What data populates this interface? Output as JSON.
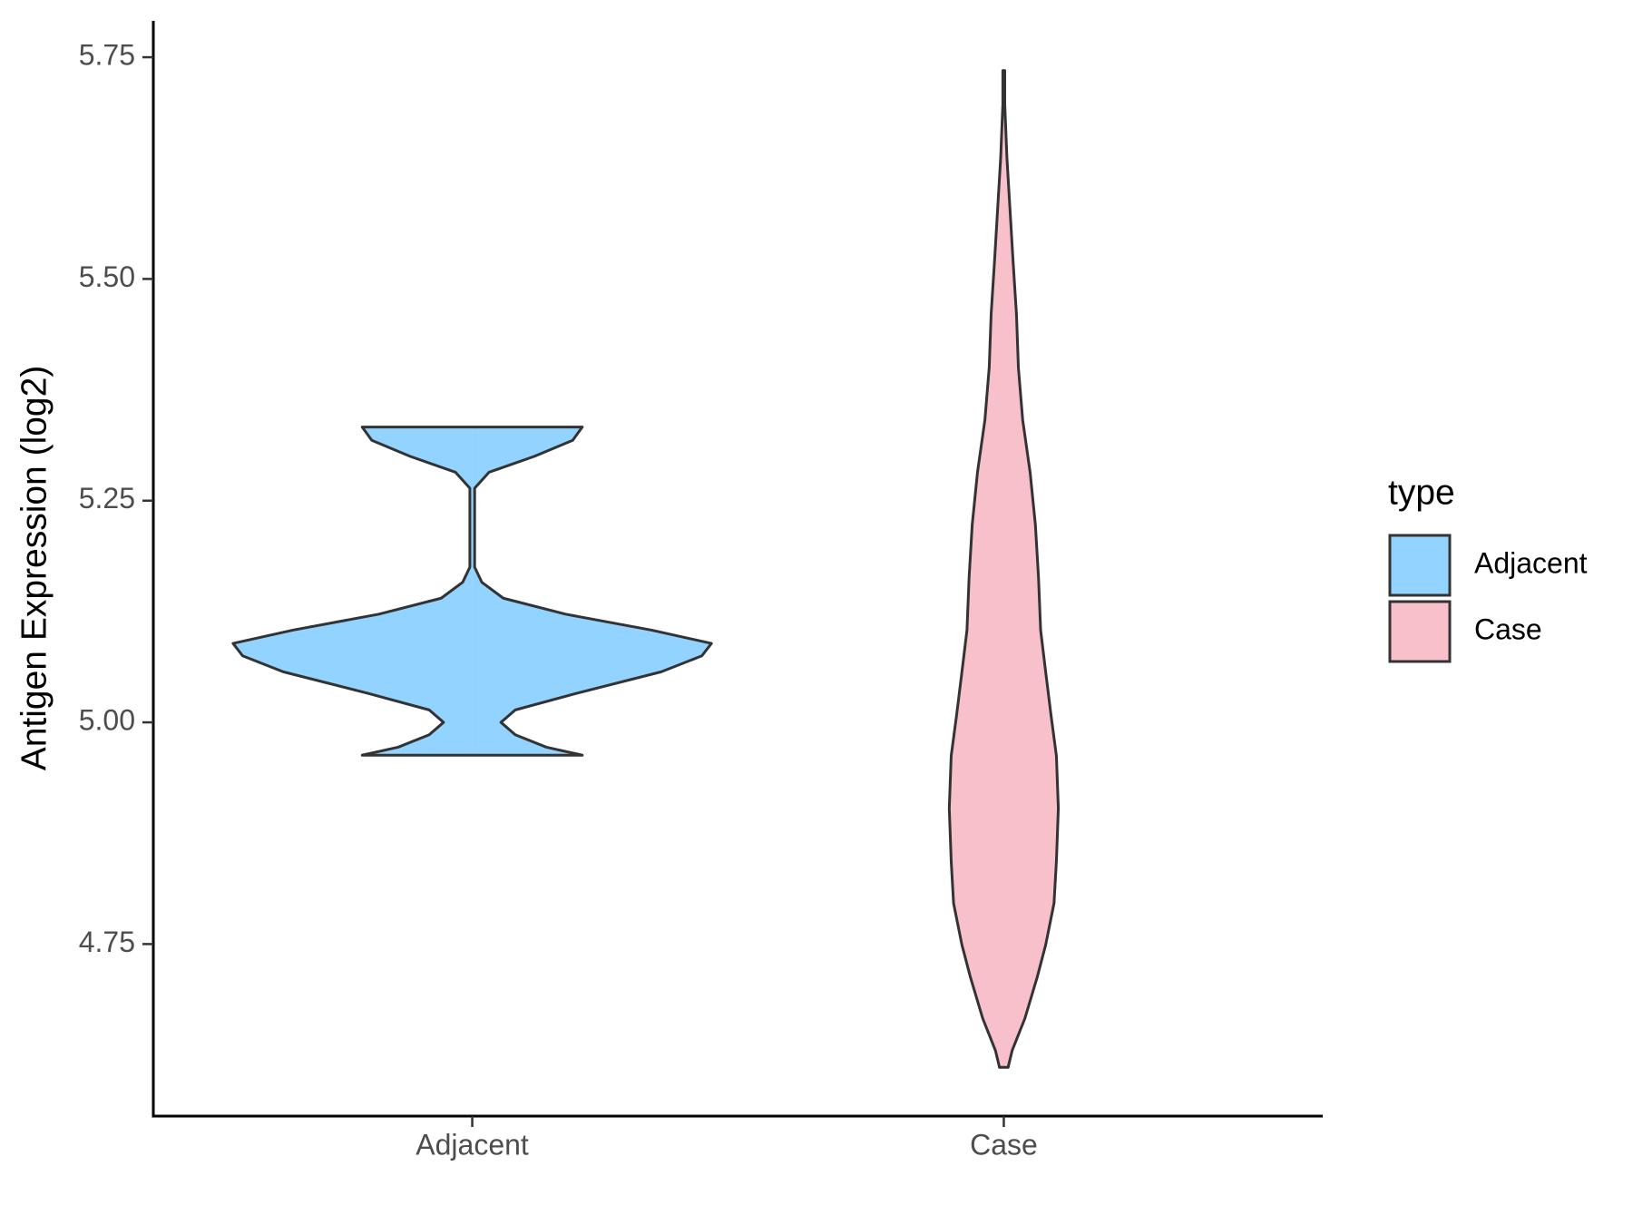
{
  "chart_data": {
    "type": "violin",
    "y_label": "Antigen Expression (log2)",
    "legend_title": "type",
    "categories": [
      "Adjacent",
      "Case"
    ],
    "series": [
      {
        "name": "Adjacent",
        "color": "#93d3ff",
        "y": [
          4.963,
          4.972,
          4.986,
          5.0,
          5.014,
          5.033,
          5.057,
          5.075,
          5.089,
          5.104,
          5.122,
          5.14,
          5.158,
          5.175,
          5.223,
          5.264,
          5.282,
          5.3,
          5.318,
          5.333
        ],
        "density": [
          0.46,
          0.31,
          0.18,
          0.12,
          0.18,
          0.44,
          0.79,
          0.96,
          1,
          0.75,
          0.39,
          0.13,
          0.04,
          0.01,
          0.01,
          0.01,
          0.07,
          0.26,
          0.42,
          0.46
        ]
      },
      {
        "name": "Case",
        "color": "#f7c0cb",
        "y": [
          4.611,
          4.63,
          4.666,
          4.713,
          4.749,
          4.796,
          4.844,
          4.903,
          4.962,
          5.009,
          5.057,
          5.104,
          5.164,
          5.223,
          5.282,
          5.341,
          5.4,
          5.46,
          5.519,
          5.578,
          5.637,
          5.697,
          5.735
        ],
        "density": [
          0.018,
          0.035,
          0.088,
          0.14,
          0.175,
          0.21,
          0.22,
          0.228,
          0.22,
          0.197,
          0.175,
          0.154,
          0.145,
          0.132,
          0.11,
          0.079,
          0.061,
          0.053,
          0.039,
          0.026,
          0.013,
          0.004,
          0.004
        ]
      }
    ],
    "ylim": [
      4.556,
      5.791
    ],
    "yticks": [
      4.75,
      {
        "value": 5,
        "label": "5.00"
      },
      5.25,
      {
        "value": 5.5,
        "label": "5.50"
      },
      5.75
    ],
    "grid": false
  }
}
